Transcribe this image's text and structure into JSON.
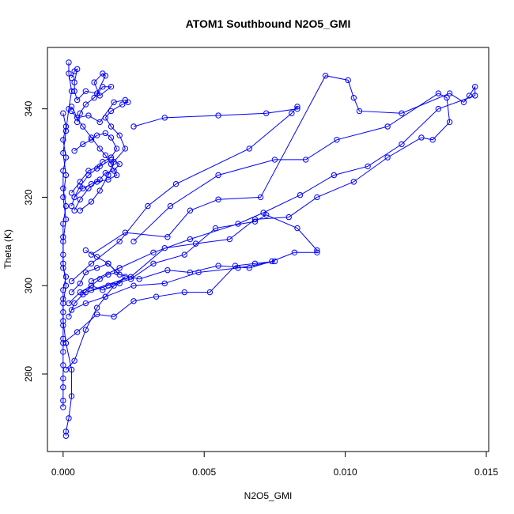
{
  "chart_data": {
    "type": "line",
    "title": "ATOM1 Southbound N2O5_GMI",
    "xlabel": "N2O5_GMI",
    "ylabel": "Theta (K)",
    "xlim": [
      -0.0005,
      0.015
    ],
    "ylim": [
      263,
      353
    ],
    "x_ticks": [
      0.0,
      0.005,
      0.01,
      0.015
    ],
    "x_tick_labels": [
      "0.000",
      "0.005",
      "0.010",
      "0.015"
    ],
    "y_ticks": [
      280,
      300,
      320,
      340
    ],
    "y_tick_labels": [
      "280",
      "300",
      "320",
      "340"
    ],
    "grid": false,
    "legend": false,
    "marker": "open-circle",
    "color": "#0000ff",
    "series": [
      {
        "values": [
          [
            0.0001,
            266.0
          ],
          [
            0.0001,
            267.0
          ],
          [
            0.0002,
            270.0
          ],
          [
            0.0003,
            275.0
          ],
          [
            0.0003,
            281.0
          ],
          [
            0.0001,
            287.0
          ],
          [
            0.0,
            292.0
          ],
          [
            0.0,
            296.0
          ],
          [
            0.0001,
            300.0
          ],
          [
            0.0,
            305.0
          ],
          [
            0.0,
            310.0
          ],
          [
            0.0001,
            315.0
          ],
          [
            0.0,
            320.0
          ],
          [
            0.0001,
            325.0
          ],
          [
            0.0,
            330.0
          ],
          [
            0.0001,
            335.0
          ],
          [
            0.0002,
            340.0
          ],
          [
            0.0003,
            344.0
          ],
          [
            0.0002,
            348.0
          ],
          [
            0.0002,
            350.5
          ]
        ]
      },
      {
        "values": [
          [
            0.0,
            272.5
          ],
          [
            0.0,
            274.0
          ],
          [
            0.0,
            277.0
          ],
          [
            0.0,
            279.0
          ],
          [
            0.0,
            282.0
          ],
          [
            0.0,
            285.0
          ],
          [
            0.0,
            288.0
          ],
          [
            0.0,
            291.0
          ],
          [
            0.0,
            294.0
          ],
          [
            0.0,
            297.0
          ],
          [
            0.0,
            299.0
          ],
          [
            0.0001,
            302.0
          ],
          [
            0.0,
            304.0
          ],
          [
            0.0,
            307.0
          ],
          [
            0.0,
            311.0
          ],
          [
            0.0,
            314.0
          ],
          [
            0.0001,
            318.0
          ],
          [
            0.0,
            322.0
          ],
          [
            0.0,
            326.0
          ],
          [
            0.0001,
            329.0
          ],
          [
            0.0,
            333.0
          ],
          [
            0.0001,
            336.0
          ],
          [
            0.0,
            339.0
          ]
        ]
      },
      {
        "values": [
          [
            0.0003,
            347.0
          ],
          [
            0.0004,
            348.5
          ],
          [
            0.0005,
            349.0
          ],
          [
            0.0004,
            346.0
          ],
          [
            0.0004,
            344.0
          ],
          [
            0.0005,
            342.0
          ],
          [
            0.0008,
            344.0
          ],
          [
            0.0012,
            343.5
          ],
          [
            0.0015,
            347.5
          ],
          [
            0.0014,
            348.0
          ],
          [
            0.0011,
            346.0
          ],
          [
            0.0013,
            343.0
          ],
          [
            0.0017,
            345.0
          ],
          [
            0.0014,
            345.0
          ],
          [
            0.0011,
            342.5
          ],
          [
            0.0008,
            341.0
          ],
          [
            0.0006,
            339.0
          ],
          [
            0.0005,
            337.0
          ]
        ]
      },
      {
        "values": [
          [
            0.0003,
            340.5
          ],
          [
            0.0005,
            338.0
          ],
          [
            0.0009,
            338.5
          ],
          [
            0.0013,
            337.0
          ],
          [
            0.0018,
            341.5
          ],
          [
            0.0022,
            342.0
          ],
          [
            0.0023,
            341.5
          ],
          [
            0.0021,
            341.0
          ],
          [
            0.0017,
            339.5
          ],
          [
            0.0015,
            338.0
          ],
          [
            0.0017,
            336.0
          ],
          [
            0.002,
            334.0
          ],
          [
            0.0022,
            331.0
          ],
          [
            0.0018,
            328.0
          ],
          [
            0.0016,
            325.0
          ],
          [
            0.0013,
            321.5
          ],
          [
            0.001,
            319.0
          ],
          [
            0.0006,
            317.0
          ]
        ]
      },
      {
        "values": [
          [
            0.0004,
            330.5
          ],
          [
            0.0007,
            332.0
          ],
          [
            0.001,
            333.0
          ],
          [
            0.0012,
            334.0
          ],
          [
            0.0015,
            334.5
          ],
          [
            0.0017,
            333.5
          ],
          [
            0.0019,
            331.0
          ],
          [
            0.0017,
            329.0
          ],
          [
            0.0014,
            328.0
          ],
          [
            0.0012,
            326.5
          ],
          [
            0.0009,
            325.0
          ],
          [
            0.0006,
            322.5
          ],
          [
            0.0004,
            320.0
          ],
          [
            0.0003,
            318.0
          ]
        ]
      },
      {
        "values": [
          [
            0.0003,
            339.5
          ],
          [
            0.0007,
            336.0
          ],
          [
            0.001,
            333.5
          ],
          [
            0.0013,
            331.0
          ],
          [
            0.0015,
            329.5
          ],
          [
            0.0017,
            327.5
          ],
          [
            0.0019,
            325.0
          ],
          [
            0.0016,
            324.0
          ],
          [
            0.0012,
            323.5
          ],
          [
            0.0009,
            322.0
          ],
          [
            0.0006,
            319.5
          ],
          [
            0.0004,
            317.0
          ]
        ]
      },
      {
        "values": [
          [
            0.0025,
            336.0
          ],
          [
            0.0036,
            338.0
          ],
          [
            0.0055,
            338.5
          ],
          [
            0.0072,
            339.0
          ],
          [
            0.0083,
            340.0
          ],
          [
            0.0083,
            340.5
          ],
          [
            0.0081,
            339.0
          ],
          [
            0.0066,
            331.0
          ],
          [
            0.004,
            323.0
          ],
          [
            0.003,
            318.0
          ],
          [
            0.002,
            310.0
          ],
          [
            0.001,
            305.0
          ],
          [
            0.0003,
            301.0
          ]
        ]
      },
      {
        "values": [
          [
            0.0025,
            310.0
          ],
          [
            0.0038,
            318.0
          ],
          [
            0.0055,
            325.0
          ],
          [
            0.0075,
            328.5
          ],
          [
            0.0086,
            328.5
          ],
          [
            0.0097,
            333.0
          ],
          [
            0.0115,
            336.0
          ],
          [
            0.0133,
            343.5
          ],
          [
            0.0136,
            342.5
          ],
          [
            0.0137,
            337.0
          ],
          [
            0.0131,
            333.0
          ],
          [
            0.0127,
            333.5
          ],
          [
            0.0115,
            329.0
          ],
          [
            0.0103,
            323.5
          ],
          [
            0.009,
            320.0
          ],
          [
            0.008,
            315.5
          ],
          [
            0.0068,
            315.0
          ],
          [
            0.0059,
            310.5
          ],
          [
            0.0047,
            309.5
          ],
          [
            0.0036,
            308.5
          ],
          [
            0.0024,
            302.0
          ],
          [
            0.001,
            299.0
          ]
        ]
      },
      {
        "values": [
          [
            0.001,
            307.0
          ],
          [
            0.0022,
            312.0
          ],
          [
            0.0037,
            311.0
          ],
          [
            0.0045,
            317.0
          ],
          [
            0.0055,
            319.5
          ],
          [
            0.007,
            320.0
          ],
          [
            0.0093,
            347.5
          ],
          [
            0.0101,
            346.5
          ],
          [
            0.0103,
            342.5
          ],
          [
            0.0105,
            339.5
          ],
          [
            0.012,
            339.0
          ],
          [
            0.0137,
            343.5
          ],
          [
            0.0142,
            341.5
          ],
          [
            0.0144,
            343.0
          ],
          [
            0.0146,
            345.0
          ],
          [
            0.0146,
            343.0
          ],
          [
            0.0133,
            340.0
          ],
          [
            0.012,
            332.0
          ],
          [
            0.0108,
            327.0
          ],
          [
            0.0096,
            325.0
          ],
          [
            0.0084,
            320.5
          ],
          [
            0.0071,
            316.5
          ],
          [
            0.0062,
            314.0
          ],
          [
            0.0045,
            310.5
          ],
          [
            0.0032,
            307.5
          ],
          [
            0.002,
            304.0
          ],
          [
            0.001,
            301.0
          ]
        ]
      },
      {
        "values": [
          [
            0.0008,
            308.0
          ],
          [
            0.0012,
            306.5
          ],
          [
            0.0016,
            305.0
          ],
          [
            0.002,
            302.5
          ],
          [
            0.0027,
            301.5
          ],
          [
            0.0037,
            303.5
          ],
          [
            0.0045,
            303.0
          ],
          [
            0.0055,
            304.5
          ],
          [
            0.0066,
            304.0
          ],
          [
            0.0074,
            305.5
          ],
          [
            0.0082,
            307.5
          ],
          [
            0.009,
            307.5
          ],
          [
            0.009,
            308.0
          ],
          [
            0.0083,
            313.0
          ],
          [
            0.0072,
            316.0
          ],
          [
            0.0068,
            314.5
          ],
          [
            0.0054,
            313.0
          ],
          [
            0.0043,
            307.0
          ],
          [
            0.0032,
            305.0
          ],
          [
            0.0024,
            301.5
          ],
          [
            0.0016,
            300.0
          ],
          [
            0.0008,
            298.5
          ]
        ]
      },
      {
        "values": [
          [
            0.0,
            287.0
          ],
          [
            0.0005,
            289.5
          ],
          [
            0.0012,
            293.5
          ],
          [
            0.0018,
            293.0
          ],
          [
            0.0025,
            296.5
          ],
          [
            0.0033,
            297.5
          ],
          [
            0.0043,
            298.5
          ],
          [
            0.0052,
            298.5
          ],
          [
            0.0061,
            304.5
          ],
          [
            0.0068,
            305.0
          ],
          [
            0.0075,
            305.5
          ],
          [
            0.0062,
            304.0
          ],
          [
            0.0048,
            303.0
          ],
          [
            0.0036,
            300.5
          ],
          [
            0.0025,
            300.0
          ],
          [
            0.0015,
            297.5
          ],
          [
            0.0008,
            296.0
          ],
          [
            0.0003,
            294.5
          ]
        ]
      },
      {
        "values": [
          [
            0.0001,
            281.0
          ],
          [
            0.0004,
            283.0
          ],
          [
            0.0008,
            290.0
          ],
          [
            0.0012,
            295.0
          ],
          [
            0.0015,
            297.5
          ],
          [
            0.0018,
            300.0
          ],
          [
            0.0022,
            302.0
          ],
          [
            0.002,
            300.5
          ],
          [
            0.0014,
            299.0
          ],
          [
            0.001,
            300.0
          ],
          [
            0.0007,
            298.0
          ],
          [
            0.0004,
            296.0
          ],
          [
            0.0002,
            293.0
          ]
        ]
      },
      {
        "values": [
          [
            0.0004,
            320.0
          ],
          [
            0.0007,
            322.0
          ],
          [
            0.001,
            323.0
          ],
          [
            0.0013,
            324.0
          ],
          [
            0.0015,
            325.5
          ],
          [
            0.0018,
            326.0
          ],
          [
            0.002,
            327.5
          ],
          [
            0.0017,
            328.5
          ],
          [
            0.0013,
            327.0
          ],
          [
            0.0009,
            326.0
          ],
          [
            0.0006,
            323.5
          ],
          [
            0.0003,
            321.0
          ]
        ]
      },
      {
        "values": [
          [
            0.0002,
            296.0
          ],
          [
            0.0006,
            298.5
          ],
          [
            0.001,
            300.0
          ],
          [
            0.0013,
            301.5
          ],
          [
            0.0016,
            302.5
          ],
          [
            0.0019,
            303.0
          ],
          [
            0.0016,
            305.0
          ],
          [
            0.0012,
            304.0
          ],
          [
            0.0008,
            303.0
          ],
          [
            0.0006,
            300.5
          ],
          [
            0.0003,
            298.5
          ]
        ]
      }
    ]
  }
}
